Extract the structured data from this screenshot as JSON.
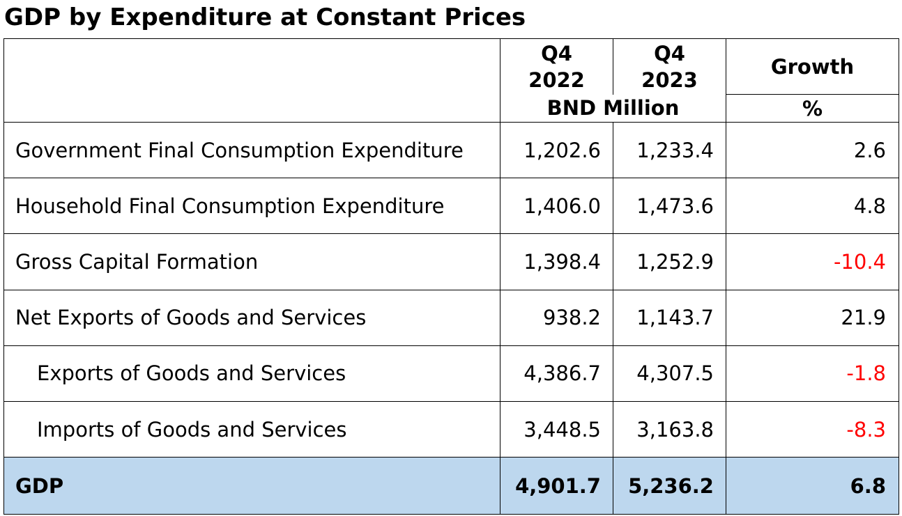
{
  "title": "GDP by Expenditure at Constant Prices",
  "header": {
    "period_1_line1": "Q4",
    "period_1_line2": "2022",
    "period_2_line1": "Q4",
    "period_2_line2": "2023",
    "growth": "Growth",
    "unit_values": "BND Million",
    "unit_growth": "%"
  },
  "rows": [
    {
      "label": "Government Final Consumption Expenditure",
      "q4_2022": "1,202.6",
      "q4_2023": "1,233.4",
      "growth": "2.6",
      "indent": false,
      "negative": false
    },
    {
      "label": "Household Final Consumption Expenditure",
      "q4_2022": "1,406.0",
      "q4_2023": "1,473.6",
      "growth": "4.8",
      "indent": false,
      "negative": false
    },
    {
      "label": "Gross Capital Formation",
      "q4_2022": "1,398.4",
      "q4_2023": "1,252.9",
      "growth": "-10.4",
      "indent": false,
      "negative": true
    },
    {
      "label": "Net Exports of Goods and Services",
      "q4_2022": "938.2",
      "q4_2023": "1,143.7",
      "growth": "21.9",
      "indent": false,
      "negative": false
    },
    {
      "label": "Exports of Goods and Services",
      "q4_2022": "4,386.7",
      "q4_2023": "4,307.5",
      "growth": "-1.8",
      "indent": true,
      "negative": true
    },
    {
      "label": "Imports of Goods and Services",
      "q4_2022": "3,448.5",
      "q4_2023": "3,163.8",
      "growth": "-8.3",
      "indent": true,
      "negative": true
    }
  ],
  "total": {
    "label": "GDP",
    "q4_2022": "4,901.7",
    "q4_2023": "5,236.2",
    "growth": "6.8"
  },
  "colors": {
    "negative": "#ff0000",
    "total_background": "#bdd7ee",
    "border": "#000000"
  }
}
